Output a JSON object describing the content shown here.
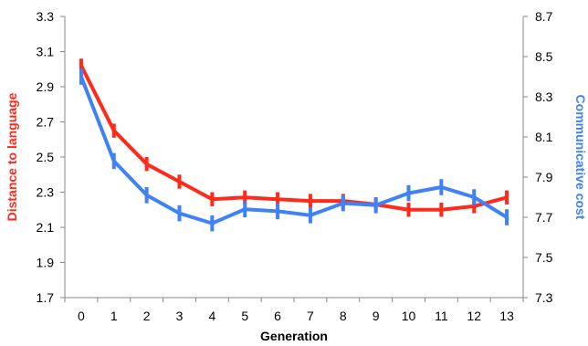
{
  "chart_data": {
    "type": "line",
    "xlabel": "Generation",
    "x": [
      0,
      1,
      2,
      3,
      4,
      5,
      6,
      7,
      8,
      9,
      10,
      11,
      12,
      13
    ],
    "x_ticks": [
      "0",
      "1",
      "2",
      "3",
      "4",
      "5",
      "6",
      "7",
      "8",
      "9",
      "10",
      "11",
      "12",
      "13"
    ],
    "y_left": {
      "label": "Distance to language",
      "color": "#ff2a1a",
      "ylim": [
        1.7,
        3.3
      ],
      "ticks": [
        "1.7",
        "1.9",
        "2.1",
        "2.3",
        "2.5",
        "2.7",
        "2.9",
        "3.1",
        "3.3"
      ],
      "tick_values": [
        1.7,
        1.9,
        2.1,
        2.3,
        2.5,
        2.7,
        2.9,
        3.1,
        3.3
      ]
    },
    "y_right": {
      "label": "Communicative cost",
      "color": "#3f82f7",
      "ylim": [
        7.3,
        8.7
      ],
      "ticks": [
        "7.3",
        "7.5",
        "7.7",
        "7.9",
        "8.1",
        "8.3",
        "8.5",
        "8.7"
      ],
      "tick_values": [
        7.3,
        7.5,
        7.7,
        7.9,
        8.1,
        8.3,
        8.5,
        8.7
      ]
    },
    "series": [
      {
        "axis": "left",
        "color": "#ff2a1a",
        "values": [
          3.02,
          2.65,
          2.46,
          2.36,
          2.26,
          2.27,
          2.26,
          2.25,
          2.25,
          2.23,
          2.2,
          2.2,
          2.22,
          2.27
        ],
        "error": [
          0.04,
          0.04,
          0.04,
          0.04,
          0.04,
          0.04,
          0.04,
          0.04,
          0.04,
          0.03,
          0.04,
          0.04,
          0.04,
          0.04
        ]
      },
      {
        "axis": "right",
        "color": "#3f82f7",
        "values": [
          8.4,
          7.98,
          7.81,
          7.72,
          7.67,
          7.74,
          7.73,
          7.71,
          7.77,
          7.76,
          7.82,
          7.85,
          7.8,
          7.7
        ],
        "error": [
          0.04,
          0.04,
          0.04,
          0.04,
          0.04,
          0.04,
          0.04,
          0.04,
          0.04,
          0.04,
          0.04,
          0.04,
          0.04,
          0.04
        ]
      }
    ],
    "grid": false
  }
}
